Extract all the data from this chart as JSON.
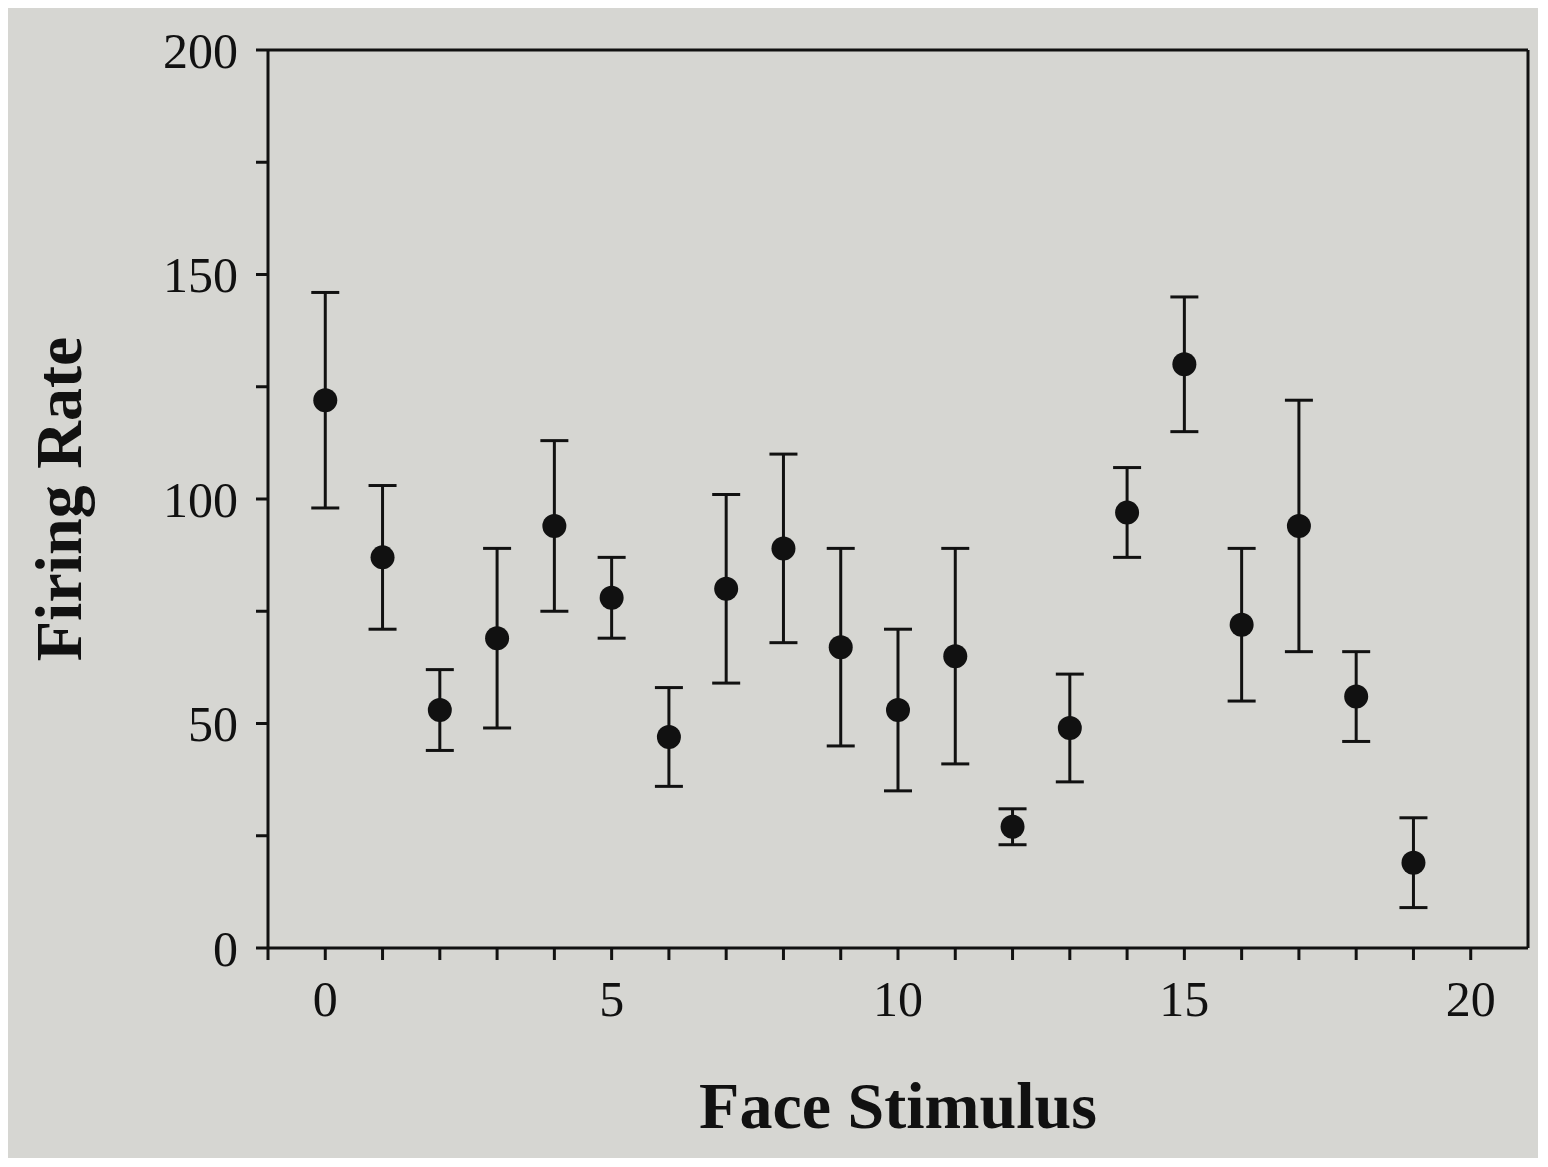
{
  "chart_data": {
    "type": "scatter",
    "xlabel": "Face Stimulus",
    "ylabel": "Firing Rate",
    "x": [
      0,
      1,
      2,
      3,
      4,
      5,
      6,
      7,
      8,
      9,
      10,
      11,
      12,
      13,
      14,
      15,
      16,
      17,
      18,
      19
    ],
    "series": [
      {
        "color": "#111111",
        "values": [
          122,
          87,
          53,
          69,
          94,
          78,
          47,
          80,
          89,
          67,
          53,
          65,
          27,
          49,
          97,
          130,
          72,
          94,
          56,
          19
        ],
        "errors": [
          24,
          16,
          9,
          20,
          19,
          9,
          11,
          21,
          21,
          22,
          18,
          24,
          4,
          12,
          10,
          15,
          17,
          28,
          10,
          10
        ]
      }
    ],
    "marker": "circle",
    "xlim": [
      -1,
      21
    ],
    "ylim": [
      0,
      200
    ],
    "xticks": [
      {
        "value": -1,
        "label": null
      },
      0,
      {
        "value": 1,
        "label": null
      },
      {
        "value": 2,
        "label": null
      },
      {
        "value": 3,
        "label": null
      },
      {
        "value": 4,
        "label": null
      },
      5,
      {
        "value": 6,
        "label": null
      },
      {
        "value": 7,
        "label": null
      },
      {
        "value": 8,
        "label": null
      },
      {
        "value": 9,
        "label": null
      },
      10,
      {
        "value": 11,
        "label": null
      },
      {
        "value": 12,
        "label": null
      },
      {
        "value": 13,
        "label": null
      },
      {
        "value": 14,
        "label": null
      },
      15,
      {
        "value": 16,
        "label": null
      },
      {
        "value": 17,
        "label": null
      },
      {
        "value": 18,
        "label": null
      },
      {
        "value": 19,
        "label": null
      },
      20
    ],
    "yticks": [
      0,
      {
        "value": 25,
        "label": null
      },
      50,
      {
        "value": 75,
        "label": null
      },
      100,
      {
        "value": 125,
        "label": null
      },
      150,
      {
        "value": 175,
        "label": null
      },
      200
    ]
  }
}
